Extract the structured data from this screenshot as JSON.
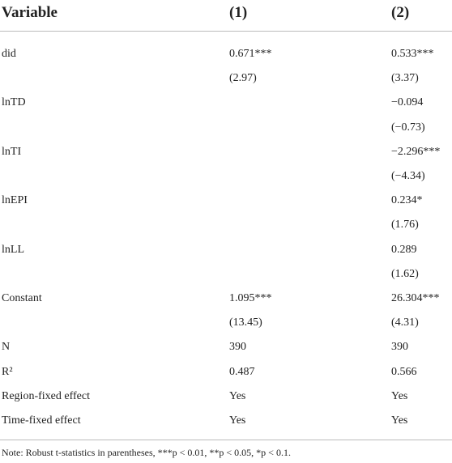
{
  "table": {
    "header": [
      "Variable",
      "(1)",
      "(2)"
    ],
    "rows": [
      [
        "did",
        "0.671***",
        "0.533***"
      ],
      [
        null,
        "(2.97)",
        "(3.37)"
      ],
      [
        "lnTD",
        null,
        "−0.094"
      ],
      [
        null,
        null,
        "(−0.73)"
      ],
      [
        "lnTI",
        null,
        "−2.296***"
      ],
      [
        null,
        null,
        "(−4.34)"
      ],
      [
        "lnEPI",
        null,
        "0.234*"
      ],
      [
        null,
        null,
        "(1.76)"
      ],
      [
        "lnLL",
        null,
        "0.289"
      ],
      [
        null,
        null,
        "(1.62)"
      ],
      [
        "Constant",
        "1.095***",
        "26.304***"
      ],
      [
        null,
        "(13.45)",
        "(4.31)"
      ],
      [
        "N",
        "390",
        "390"
      ],
      [
        "R²",
        "0.487",
        "0.566"
      ],
      [
        "Region-fixed effect",
        "Yes",
        "Yes"
      ],
      [
        "Time-fixed effect",
        "Yes",
        "Yes"
      ]
    ],
    "note": "Note: Robust t-statistics in parentheses, ***p < 0.01, **p < 0.05, *p < 0.1."
  }
}
